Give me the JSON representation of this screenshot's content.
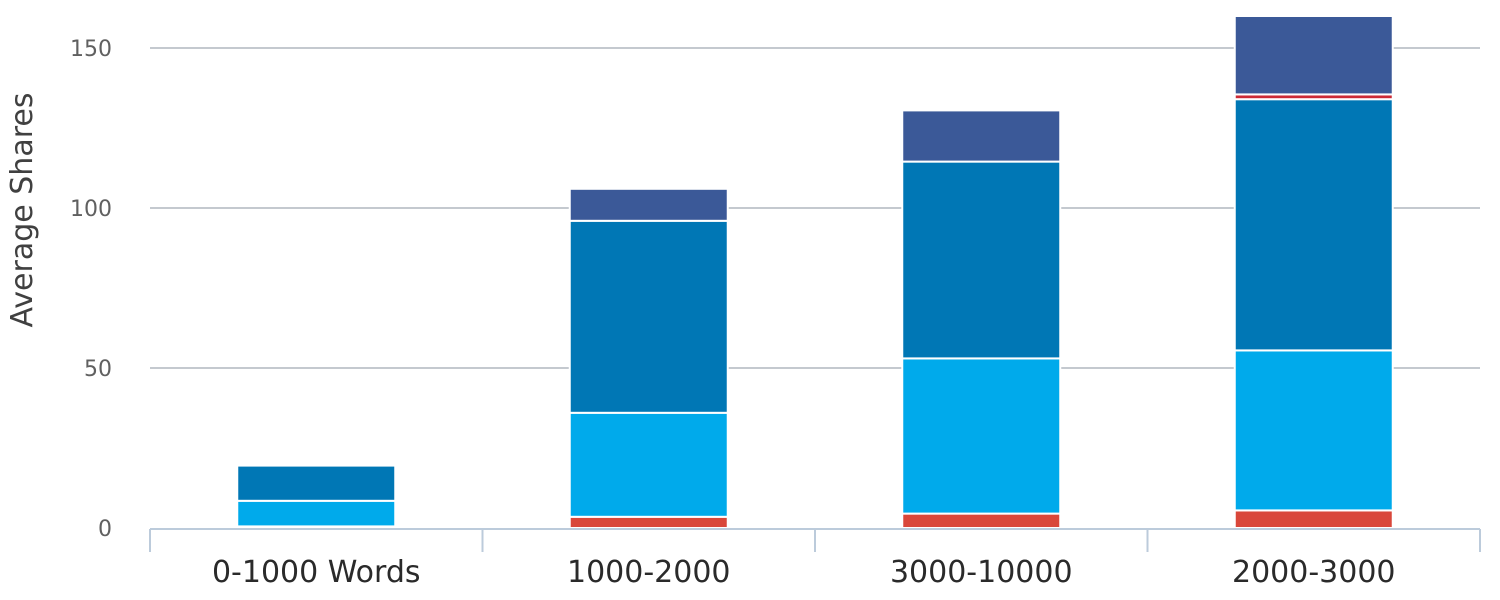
{
  "chart_data": {
    "type": "bar",
    "stacked": true,
    "categories": [
      "0-1000 Words",
      "1000-2000",
      "3000-10000",
      "2000-3000"
    ],
    "series": [
      {
        "color": "#d9473a",
        "values": [
          0.5,
          3.5,
          4.5,
          5.5
        ]
      },
      {
        "color": "#00aaeb",
        "values": [
          8.0,
          32.5,
          48.5,
          50.0
        ]
      },
      {
        "color": "#0077b5",
        "values": [
          11.0,
          60.0,
          61.5,
          78.5
        ]
      },
      {
        "color": "#cc2a36",
        "values": [
          0,
          0,
          0,
          1.5
        ]
      },
      {
        "color": "#3b5998",
        "values": [
          0,
          10.0,
          16.0,
          24.5
        ]
      }
    ],
    "title": "",
    "xlabel": "",
    "ylabel": "Average Shares",
    "ylim": [
      0,
      160
    ],
    "yticks": [
      0,
      50,
      100,
      150
    ],
    "grid": true,
    "legend": "none"
  }
}
